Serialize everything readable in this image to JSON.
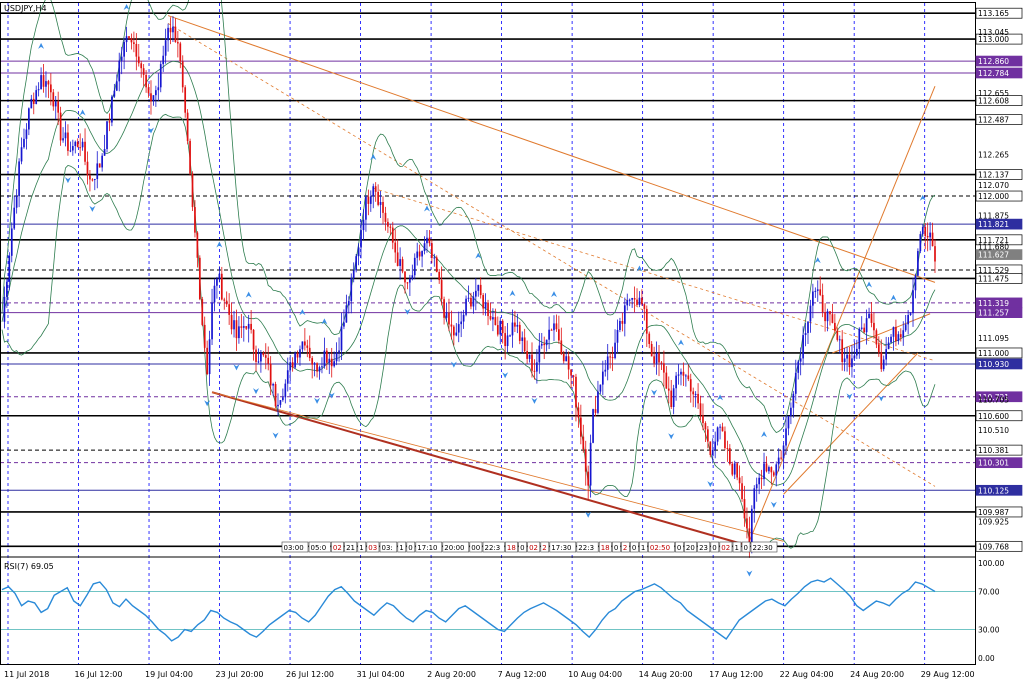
{
  "window": {
    "symbol_label": "USDJPY,H4",
    "rsi_label": "RSI(7) 69.05"
  },
  "chart_data": [
    {
      "type": "candlestick",
      "title": "USDJPY,H4",
      "ylim": [
        109.7,
        113.23
      ],
      "price_ticks": [
        113.045,
        112.655,
        112.265,
        112.07,
        111.875,
        111.68,
        111.095,
        110.705,
        110.51,
        109.925
      ],
      "time_labels": [
        "11 Jul 2018",
        "16 Jul 12:00",
        "19 Jul 04:00",
        "23 Jul 20:00",
        "26 Jul 12:00",
        "31 Jul 04:00",
        "2 Aug 20:00",
        "7 Aug 12:00",
        "10 Aug 04:00",
        "14 Aug 20:00",
        "17 Aug 12:00",
        "22 Aug 04:00",
        "24 Aug 20:00",
        "29 Aug 12:00"
      ],
      "close_path": [
        [
          0,
          111.2
        ],
        [
          4,
          111.8
        ],
        [
          8,
          112.3
        ],
        [
          12,
          112.6
        ],
        [
          16,
          112.75
        ],
        [
          20,
          112.7
        ],
        [
          24,
          112.4
        ],
        [
          28,
          112.3
        ],
        [
          32,
          112.35
        ],
        [
          36,
          112.1
        ],
        [
          40,
          112.2
        ],
        [
          44,
          112.5
        ],
        [
          48,
          112.85
        ],
        [
          52,
          113.05
        ],
        [
          56,
          112.9
        ],
        [
          60,
          112.6
        ],
        [
          64,
          112.7
        ],
        [
          68,
          113.1
        ],
        [
          72,
          113.0
        ],
        [
          76,
          112.3
        ],
        [
          78,
          111.9
        ],
        [
          80,
          111.6
        ],
        [
          82,
          111.2
        ],
        [
          84,
          110.9
        ],
        [
          86,
          111.3
        ],
        [
          88,
          111.5
        ],
        [
          92,
          111.3
        ],
        [
          96,
          111.1
        ],
        [
          100,
          111.2
        ],
        [
          104,
          111.0
        ],
        [
          108,
          110.95
        ],
        [
          112,
          110.7
        ],
        [
          116,
          110.8
        ],
        [
          120,
          111.0
        ],
        [
          124,
          111.1
        ],
        [
          128,
          110.9
        ],
        [
          132,
          111.0
        ],
        [
          136,
          110.95
        ],
        [
          140,
          111.2
        ],
        [
          144,
          111.5
        ],
        [
          148,
          111.9
        ],
        [
          152,
          112.1
        ],
        [
          154,
          112.0
        ],
        [
          158,
          111.8
        ],
        [
          162,
          111.6
        ],
        [
          166,
          111.4
        ],
        [
          170,
          111.6
        ],
        [
          174,
          111.7
        ],
        [
          178,
          111.5
        ],
        [
          182,
          111.2
        ],
        [
          186,
          111.1
        ],
        [
          190,
          111.3
        ],
        [
          194,
          111.4
        ],
        [
          198,
          111.3
        ],
        [
          202,
          111.2
        ],
        [
          206,
          111.1
        ],
        [
          210,
          111.2
        ],
        [
          214,
          111.0
        ],
        [
          218,
          110.9
        ],
        [
          222,
          111.1
        ],
        [
          226,
          111.2
        ],
        [
          230,
          111.0
        ],
        [
          234,
          110.8
        ],
        [
          238,
          110.4
        ],
        [
          240,
          110.2
        ],
        [
          242,
          110.6
        ],
        [
          246,
          110.9
        ],
        [
          250,
          111.0
        ],
        [
          254,
          111.2
        ],
        [
          258,
          111.4
        ],
        [
          262,
          111.3
        ],
        [
          266,
          111.0
        ],
        [
          270,
          110.9
        ],
        [
          274,
          110.7
        ],
        [
          278,
          110.9
        ],
        [
          282,
          110.8
        ],
        [
          286,
          110.6
        ],
        [
          290,
          110.4
        ],
        [
          294,
          110.5
        ],
        [
          298,
          110.3
        ],
        [
          302,
          110.2
        ],
        [
          304,
          110.0
        ],
        [
          306,
          109.8
        ],
        [
          308,
          110.1
        ],
        [
          312,
          110.3
        ],
        [
          316,
          110.25
        ],
        [
          320,
          110.4
        ],
        [
          324,
          110.8
        ],
        [
          328,
          111.1
        ],
        [
          332,
          111.4
        ],
        [
          336,
          111.3
        ],
        [
          340,
          111.15
        ],
        [
          344,
          111.0
        ],
        [
          348,
          110.95
        ],
        [
          352,
          111.15
        ],
        [
          356,
          111.25
        ],
        [
          360,
          110.95
        ],
        [
          364,
          111.1
        ],
        [
          368,
          111.15
        ],
        [
          372,
          111.3
        ],
        [
          376,
          111.78
        ],
        [
          380,
          111.72
        ],
        [
          382,
          111.6
        ]
      ],
      "horizontal_levels": [
        {
          "price": 113.165,
          "label": "113.165",
          "style": "solid",
          "color": "#000000"
        },
        {
          "price": 113.0,
          "label": "113.000",
          "style": "solid",
          "color": "#000000"
        },
        {
          "price": 112.86,
          "label": "112.860",
          "style": "solid",
          "color": "#7030a0"
        },
        {
          "price": 112.784,
          "label": "112.784",
          "style": "solid",
          "color": "#7030a0"
        },
        {
          "price": 112.608,
          "label": "112.608",
          "style": "solid",
          "color": "#000000"
        },
        {
          "price": 112.487,
          "label": "112.487",
          "style": "solid",
          "color": "#000000"
        },
        {
          "price": 112.137,
          "label": "112.137",
          "style": "solid",
          "color": "#000000"
        },
        {
          "price": 112.0,
          "label": "112.000",
          "style": "dashed",
          "color": "#000000"
        },
        {
          "price": 111.821,
          "label": "111.821",
          "style": "solid",
          "color": "#2e2ea0"
        },
        {
          "price": 111.721,
          "label": "111.721",
          "style": "solid",
          "color": "#000000"
        },
        {
          "price": 111.627,
          "label": "111.627",
          "style": "tag",
          "color": "#808080"
        },
        {
          "price": 111.529,
          "label": "111.529",
          "style": "dashed",
          "color": "#000000"
        },
        {
          "price": 111.475,
          "label": "111.475",
          "style": "solid",
          "color": "#000000"
        },
        {
          "price": 111.319,
          "label": "111.319",
          "style": "dashed",
          "color": "#7030a0"
        },
        {
          "price": 111.257,
          "label": "111.257",
          "style": "solid",
          "color": "#7030a0"
        },
        {
          "price": 111.0,
          "label": "111.000",
          "style": "solid",
          "color": "#000000"
        },
        {
          "price": 110.93,
          "label": "110.930",
          "style": "solid",
          "color": "#2e2ea0"
        },
        {
          "price": 110.721,
          "label": "110.721",
          "style": "dashed",
          "color": "#7030a0"
        },
        {
          "price": 110.6,
          "label": "110.600",
          "style": "solid",
          "color": "#000000"
        },
        {
          "price": 110.381,
          "label": "110.381",
          "style": "dashed",
          "color": "#000000"
        },
        {
          "price": 110.301,
          "label": "110.301",
          "style": "dashed",
          "color": "#7030a0"
        },
        {
          "price": 110.125,
          "label": "110.125",
          "style": "solid",
          "color": "#2e2ea0"
        },
        {
          "price": 109.987,
          "label": "109.987",
          "style": "solid",
          "color": "#000000"
        },
        {
          "price": 109.768,
          "label": "109.768",
          "style": "solid",
          "color": "#000000"
        }
      ],
      "session_labels": [
        "03:00",
        "05:0",
        "02",
        "21",
        "1",
        "03",
        "03:",
        "1",
        "0",
        "17:10",
        "20:00",
        "00",
        "22:3",
        "18",
        "0",
        "02",
        "2",
        "17:30",
        "22:3",
        "18",
        "0",
        "2",
        "0",
        "1",
        "02:50",
        "0",
        "20",
        "23",
        "0",
        "02",
        "1",
        "0",
        "22:30"
      ],
      "colors": {
        "bull": "#1515d0",
        "bear": "#e01010",
        "bollinger": "#2e7d4f",
        "trend": "#e07a2e",
        "channel": "#b03020",
        "arrow": "#3a8ee6",
        "rsi": "#2a8ad8",
        "rsi_level": "#40b0b0",
        "grid": "#0000ff"
      }
    },
    {
      "type": "line",
      "title": "RSI(7) 69.05",
      "ylim": [
        0,
        100
      ],
      "levels": [
        70,
        30
      ],
      "tick_labels": [
        "100.00",
        "70.00",
        "30.00",
        "0.00"
      ],
      "values": [
        72,
        75,
        68,
        55,
        60,
        58,
        48,
        52,
        66,
        70,
        74,
        60,
        55,
        66,
        78,
        80,
        72,
        58,
        54,
        62,
        55,
        50,
        45,
        38,
        30,
        25,
        18,
        22,
        30,
        28,
        35,
        40,
        50,
        48,
        42,
        38,
        35,
        30,
        25,
        22,
        28,
        35,
        40,
        45,
        50,
        48,
        42,
        38,
        45,
        55,
        65,
        72,
        75,
        68,
        60,
        55,
        50,
        45,
        52,
        58,
        55,
        48,
        42,
        38,
        45,
        50,
        48,
        42,
        38,
        45,
        52,
        55,
        50,
        45,
        40,
        35,
        30,
        28,
        35,
        42,
        48,
        52,
        55,
        58,
        54,
        50,
        45,
        40,
        35,
        28,
        22,
        30,
        40,
        48,
        52,
        60,
        65,
        70,
        72,
        75,
        78,
        74,
        68,
        62,
        58,
        50,
        45,
        40,
        35,
        30,
        25,
        20,
        30,
        40,
        45,
        50,
        55,
        60,
        62,
        58,
        55,
        62,
        68,
        75,
        80,
        82,
        80,
        84,
        78,
        72,
        65,
        55,
        50,
        55,
        60,
        58,
        55,
        62,
        68,
        72,
        80,
        78,
        74,
        70
      ]
    }
  ]
}
